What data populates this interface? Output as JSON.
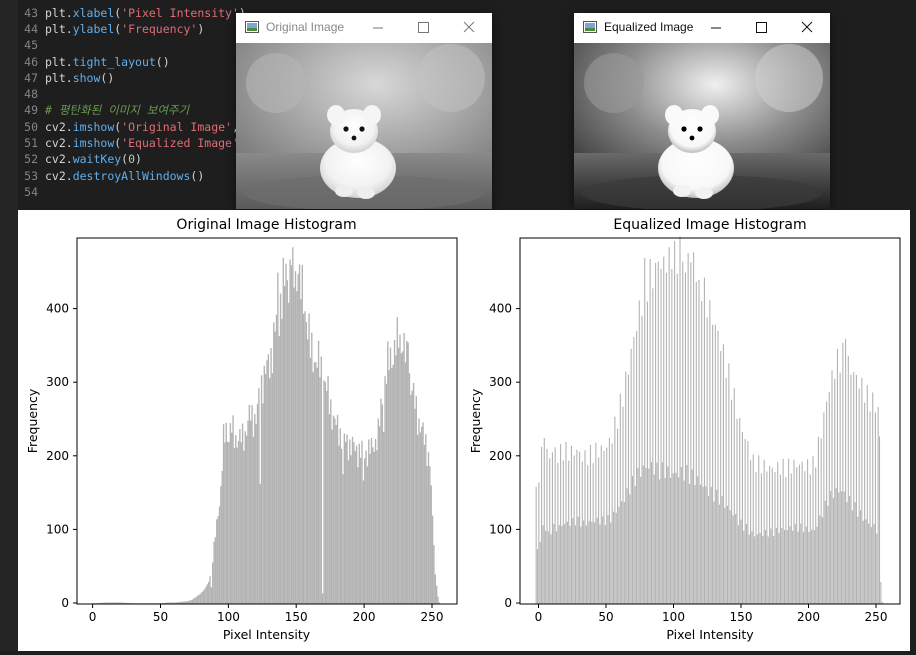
{
  "editor": {
    "lines": [
      {
        "no": "43",
        "tokens": [
          {
            "t": "plt.",
            "c": "plain"
          },
          {
            "t": "xlabel",
            "c": "fn"
          },
          {
            "t": "(",
            "c": "plain"
          },
          {
            "t": "'Pixel Intensity'",
            "c": "str"
          },
          {
            "t": ")",
            "c": "plain"
          }
        ]
      },
      {
        "no": "44",
        "tokens": [
          {
            "t": "plt.",
            "c": "plain"
          },
          {
            "t": "ylabel",
            "c": "fn"
          },
          {
            "t": "(",
            "c": "plain"
          },
          {
            "t": "'Frequency'",
            "c": "str"
          },
          {
            "t": ")",
            "c": "plain"
          }
        ]
      },
      {
        "no": "45",
        "tokens": []
      },
      {
        "no": "46",
        "tokens": [
          {
            "t": "plt.",
            "c": "plain"
          },
          {
            "t": "tight_layout",
            "c": "fn"
          },
          {
            "t": "()",
            "c": "plain"
          }
        ]
      },
      {
        "no": "47",
        "tokens": [
          {
            "t": "plt.",
            "c": "plain"
          },
          {
            "t": "show",
            "c": "fn"
          },
          {
            "t": "()",
            "c": "plain"
          }
        ]
      },
      {
        "no": "48",
        "tokens": []
      },
      {
        "no": "49",
        "tokens": [
          {
            "t": "# 평탄화된 이미지 보여주기",
            "c": "cm"
          }
        ]
      },
      {
        "no": "50",
        "tokens": [
          {
            "t": "cv2.",
            "c": "plain"
          },
          {
            "t": "imshow",
            "c": "fn"
          },
          {
            "t": "(",
            "c": "plain"
          },
          {
            "t": "'Original Image'",
            "c": "str"
          },
          {
            "t": ", i",
            "c": "plain"
          }
        ]
      },
      {
        "no": "51",
        "tokens": [
          {
            "t": "cv2.",
            "c": "plain"
          },
          {
            "t": "imshow",
            "c": "fn"
          },
          {
            "t": "(",
            "c": "plain"
          },
          {
            "t": "'Equalized Image'",
            "c": "str"
          },
          {
            "t": ",",
            "c": "plain"
          }
        ]
      },
      {
        "no": "52",
        "tokens": [
          {
            "t": "cv2.",
            "c": "plain"
          },
          {
            "t": "waitKey",
            "c": "fn"
          },
          {
            "t": "(",
            "c": "plain"
          },
          {
            "t": "0",
            "c": "num"
          },
          {
            "t": ")",
            "c": "plain"
          }
        ]
      },
      {
        "no": "53",
        "tokens": [
          {
            "t": "cv2.",
            "c": "plain"
          },
          {
            "t": "destroyAllWindows",
            "c": "fn"
          },
          {
            "t": "()",
            "c": "plain"
          }
        ]
      },
      {
        "no": "54",
        "tokens": []
      }
    ]
  },
  "windows": {
    "original": {
      "title": "Original Image",
      "title_color": "#888888",
      "minimize_icon": "minimize-icon",
      "maximize_icon": "maximize-icon",
      "close_icon": "close-icon"
    },
    "equalized": {
      "title": "Equalized Image",
      "title_color": "#111111",
      "minimize_icon": "minimize-icon",
      "maximize_icon": "maximize-icon",
      "close_icon": "close-icon"
    }
  },
  "colors": {
    "bar": "#b3b3b3",
    "editor_bg": "#1e1e1e"
  },
  "chart_data": [
    {
      "type": "bar",
      "title": "Original Image Histogram",
      "xlabel": "Pixel Intensity",
      "ylabel": "Frequency",
      "xlim": [
        -12,
        268
      ],
      "ylim": [
        0,
        497
      ],
      "xticks": [
        "0",
        "50",
        "100",
        "150",
        "200",
        "250"
      ],
      "yticks": [
        "0",
        "100",
        "200",
        "300",
        "400"
      ],
      "bins": 256,
      "anchors": [
        [
          0,
          1
        ],
        [
          10,
          2
        ],
        [
          20,
          2
        ],
        [
          30,
          1
        ],
        [
          40,
          1
        ],
        [
          50,
          1
        ],
        [
          55,
          2
        ],
        [
          60,
          2
        ],
        [
          65,
          3
        ],
        [
          70,
          4
        ],
        [
          73,
          6
        ],
        [
          76,
          10
        ],
        [
          79,
          14
        ],
        [
          82,
          20
        ],
        [
          85,
          30
        ],
        [
          88,
          60
        ],
        [
          91,
          110
        ],
        [
          94,
          155
        ],
        [
          96,
          220
        ],
        [
          98,
          240
        ],
        [
          100,
          228
        ],
        [
          102,
          238
        ],
        [
          104,
          228
        ],
        [
          108,
          222
        ],
        [
          112,
          232
        ],
        [
          116,
          258
        ],
        [
          120,
          250
        ],
        [
          124,
          300
        ],
        [
          128,
          318
        ],
        [
          132,
          345
        ],
        [
          135,
          380
        ],
        [
          138,
          408
        ],
        [
          141,
          432
        ],
        [
          144,
          448
        ],
        [
          147,
          440
        ],
        [
          150,
          434
        ],
        [
          153,
          428
        ],
        [
          156,
          405
        ],
        [
          158,
          378
        ],
        [
          160,
          345
        ],
        [
          163,
          335
        ],
        [
          166,
          325
        ],
        [
          169,
          315
        ],
        [
          172,
          290
        ],
        [
          175,
          268
        ],
        [
          178,
          245
        ],
        [
          182,
          232
        ],
        [
          186,
          220
        ],
        [
          190,
          215
        ],
        [
          195,
          208
        ],
        [
          200,
          205
        ],
        [
          205,
          210
        ],
        [
          210,
          230
        ],
        [
          213,
          280
        ],
        [
          216,
          315
        ],
        [
          219,
          335
        ],
        [
          222,
          345
        ],
        [
          225,
          355
        ],
        [
          227,
          362
        ],
        [
          230,
          335
        ],
        [
          233,
          310
        ],
        [
          236,
          280
        ],
        [
          239,
          255
        ],
        [
          242,
          235
        ],
        [
          245,
          220
        ],
        [
          248,
          190
        ],
        [
          250,
          120
        ],
        [
          252,
          40
        ],
        [
          254,
          10
        ],
        [
          255,
          2
        ]
      ],
      "spikes": [
        [
          136,
          450
        ],
        [
          140,
          470
        ],
        [
          142,
          462
        ],
        [
          146,
          460
        ],
        [
          149,
          452
        ],
        [
          151,
          448
        ],
        [
          225,
          348
        ],
        [
          229,
          368
        ],
        [
          232,
          355
        ]
      ],
      "dips": [
        [
          87,
          0.45
        ],
        [
          123,
          0.6
        ],
        [
          169,
          0.05
        ],
        [
          184,
          0.75
        ],
        [
          199,
          0.8
        ],
        [
          214,
          0.85
        ]
      ]
    },
    {
      "type": "bar",
      "title": "Equalized Image Histogram",
      "xlabel": "Pixel Intensity",
      "ylabel": "Frequency",
      "xlim": [
        -12,
        268
      ],
      "ylim": [
        0,
        497
      ],
      "xticks": [
        "0",
        "50",
        "100",
        "150",
        "200",
        "250"
      ],
      "yticks": [
        "0",
        "100",
        "200",
        "300",
        "400"
      ],
      "bins": 256,
      "anchors": [
        [
          0,
          150
        ],
        [
          3,
          190
        ],
        [
          6,
          240
        ],
        [
          9,
          200
        ],
        [
          12,
          220
        ],
        [
          16,
          215
        ],
        [
          20,
          225
        ],
        [
          25,
          225
        ],
        [
          30,
          230
        ],
        [
          35,
          220
        ],
        [
          40,
          225
        ],
        [
          45,
          230
        ],
        [
          50,
          230
        ],
        [
          55,
          240
        ],
        [
          60,
          270
        ],
        [
          65,
          305
        ],
        [
          70,
          350
        ],
        [
          75,
          390
        ],
        [
          80,
          420
        ],
        [
          85,
          432
        ],
        [
          90,
          425
        ],
        [
          95,
          435
        ],
        [
          100,
          425
        ],
        [
          105,
          435
        ],
        [
          110,
          440
        ],
        [
          115,
          425
        ],
        [
          120,
          410
        ],
        [
          125,
          380
        ],
        [
          130,
          360
        ],
        [
          135,
          340
        ],
        [
          140,
          310
        ],
        [
          145,
          280
        ],
        [
          150,
          245
        ],
        [
          155,
          225
        ],
        [
          160,
          200
        ],
        [
          165,
          200
        ],
        [
          170,
          200
        ],
        [
          175,
          200
        ],
        [
          180,
          205
        ],
        [
          185,
          205
        ],
        [
          190,
          210
        ],
        [
          195,
          210
        ],
        [
          200,
          205
        ],
        [
          205,
          205
        ],
        [
          210,
          250
        ],
        [
          215,
          300
        ],
        [
          220,
          330
        ],
        [
          225,
          340
        ],
        [
          230,
          320
        ],
        [
          235,
          300
        ],
        [
          240,
          280
        ],
        [
          245,
          260
        ],
        [
          250,
          250
        ],
        [
          253,
          235
        ],
        [
          254,
          30
        ],
        [
          255,
          3
        ]
      ],
      "spikes": [
        [
          80,
          470
        ],
        [
          90,
          465
        ],
        [
          100,
          455
        ],
        [
          110,
          450
        ],
        [
          120,
          440
        ],
        [
          228,
          360
        ]
      ],
      "dips": []
    }
  ]
}
